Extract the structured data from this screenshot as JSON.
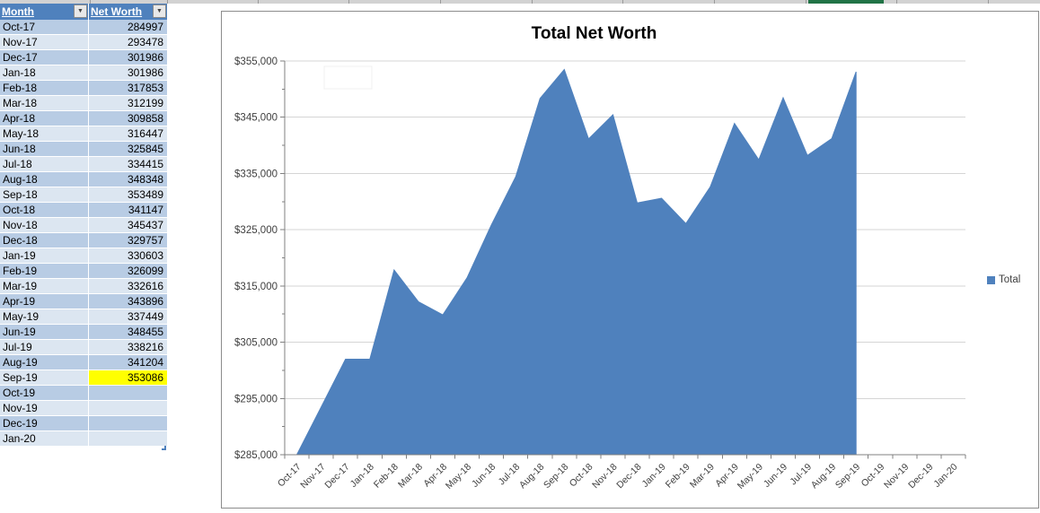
{
  "colors": {
    "accent_blue": "#4f81bd",
    "band_dark": "#b8cce4",
    "band_light": "#dce6f1",
    "header_blue": "#4f81bd",
    "highlight_yellow": "#ffff00",
    "excel_green": "#217346",
    "axis_gray": "#808080",
    "gridline_gray": "#d5d5d5"
  },
  "table": {
    "headers": [
      {
        "label": "Month"
      },
      {
        "label": "Net Worth"
      }
    ],
    "filter_arrow": "▼",
    "rows": [
      {
        "month": "Oct-17",
        "value": "284997",
        "highlight": false
      },
      {
        "month": "Nov-17",
        "value": "293478",
        "highlight": false
      },
      {
        "month": "Dec-17",
        "value": "301986",
        "highlight": false
      },
      {
        "month": "Jan-18",
        "value": "301986",
        "highlight": false
      },
      {
        "month": "Feb-18",
        "value": "317853",
        "highlight": false
      },
      {
        "month": "Mar-18",
        "value": "312199",
        "highlight": false
      },
      {
        "month": "Apr-18",
        "value": "309858",
        "highlight": false
      },
      {
        "month": "May-18",
        "value": "316447",
        "highlight": false
      },
      {
        "month": "Jun-18",
        "value": "325845",
        "highlight": false
      },
      {
        "month": "Jul-18",
        "value": "334415",
        "highlight": false
      },
      {
        "month": "Aug-18",
        "value": "348348",
        "highlight": false
      },
      {
        "month": "Sep-18",
        "value": "353489",
        "highlight": false
      },
      {
        "month": "Oct-18",
        "value": "341147",
        "highlight": false
      },
      {
        "month": "Nov-18",
        "value": "345437",
        "highlight": false
      },
      {
        "month": "Dec-18",
        "value": "329757",
        "highlight": false
      },
      {
        "month": "Jan-19",
        "value": "330603",
        "highlight": false
      },
      {
        "month": "Feb-19",
        "value": "326099",
        "highlight": false
      },
      {
        "month": "Mar-19",
        "value": "332616",
        "highlight": false
      },
      {
        "month": "Apr-19",
        "value": "343896",
        "highlight": false
      },
      {
        "month": "May-19",
        "value": "337449",
        "highlight": false
      },
      {
        "month": "Jun-19",
        "value": "348455",
        "highlight": false
      },
      {
        "month": "Jul-19",
        "value": "338216",
        "highlight": false
      },
      {
        "month": "Aug-19",
        "value": "341204",
        "highlight": false
      },
      {
        "month": "Sep-19",
        "value": "353086",
        "highlight": true
      },
      {
        "month": "Oct-19",
        "value": "",
        "highlight": false
      },
      {
        "month": "Nov-19",
        "value": "",
        "highlight": false
      },
      {
        "month": "Dec-19",
        "value": "",
        "highlight": false
      },
      {
        "month": "Jan-20",
        "value": "",
        "highlight": false
      }
    ]
  },
  "chart_data": {
    "type": "area",
    "title": "Total Net Worth",
    "categories": [
      "Oct-17",
      "Nov-17",
      "Dec-17",
      "Jan-18",
      "Feb-18",
      "Mar-18",
      "Apr-18",
      "May-18",
      "Jun-18",
      "Jul-18",
      "Aug-18",
      "Sep-18",
      "Oct-18",
      "Nov-18",
      "Dec-18",
      "Jan-19",
      "Feb-19",
      "Mar-19",
      "Apr-19",
      "May-19",
      "Jun-19",
      "Jul-19",
      "Aug-19",
      "Sep-19",
      "Oct-19",
      "Nov-19",
      "Dec-19",
      "Jan-20"
    ],
    "series": [
      {
        "name": "Total",
        "values": [
          284997,
          293478,
          301986,
          301986,
          317853,
          312199,
          309858,
          316447,
          325845,
          334415,
          348348,
          353489,
          341147,
          345437,
          329757,
          330603,
          326099,
          332616,
          343896,
          337449,
          348455,
          338216,
          341204,
          353086,
          null,
          null,
          null,
          null
        ]
      }
    ],
    "ylim": [
      285000,
      355000
    ],
    "ytick_interval": 10000,
    "ytick_minor_interval": 5000,
    "ytick_labels": [
      "$285,000",
      "$295,000",
      "$305,000",
      "$315,000",
      "$325,000",
      "$335,000",
      "$345,000",
      "$355,000"
    ],
    "xlabel": "",
    "ylabel": "",
    "grid": true,
    "legend_position": "right",
    "legend_labels": [
      "Total"
    ]
  }
}
